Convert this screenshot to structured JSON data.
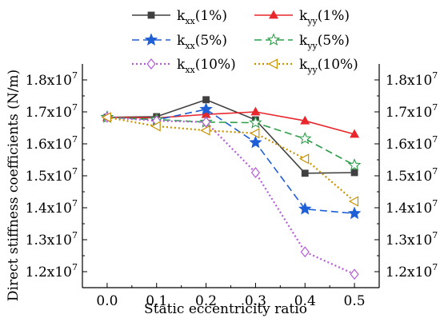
{
  "chart_data": {
    "type": "line",
    "title": "",
    "xlabel": "Static eccentricity ratio",
    "ylabel": "Direct stiffness coefficients (N/m)",
    "x": [
      0.0,
      0.1,
      0.2,
      0.3,
      0.4,
      0.5
    ],
    "x_ticks": [
      "0.0",
      "0.1",
      "0.2",
      "0.3",
      "0.4",
      "0.5"
    ],
    "xlim": [
      -0.05,
      0.55
    ],
    "ylim": [
      11500000,
      18500000
    ],
    "y_ticks": [
      {
        "value": 12000000,
        "mantissa": "1.2",
        "exp": "7"
      },
      {
        "value": 13000000,
        "mantissa": "1.3",
        "exp": "7"
      },
      {
        "value": 14000000,
        "mantissa": "1.4",
        "exp": "7"
      },
      {
        "value": 15000000,
        "mantissa": "1.5",
        "exp": "7"
      },
      {
        "value": 16000000,
        "mantissa": "1.6",
        "exp": "7"
      },
      {
        "value": 17000000,
        "mantissa": "1.7",
        "exp": "7"
      },
      {
        "value": 18000000,
        "mantissa": "1.8",
        "exp": "7"
      }
    ],
    "y_tick_base": "x10",
    "grid": false,
    "legend_position": "top",
    "series": [
      {
        "name_main": "k",
        "name_sub": "xx",
        "name_suffix": "(1%)",
        "color": "#404040",
        "dash": "solid",
        "marker": "square-filled",
        "values": [
          16830000,
          16850000,
          17380000,
          16750000,
          15080000,
          15100000
        ]
      },
      {
        "name_main": "k",
        "name_sub": "yy",
        "name_suffix": "(1%)",
        "color": "#e8262b",
        "dash": "solid",
        "marker": "triangle-filled",
        "values": [
          16830000,
          16810000,
          16920000,
          17000000,
          16720000,
          16300000
        ]
      },
      {
        "name_main": "k",
        "name_sub": "xx",
        "name_suffix": "(5%)",
        "color": "#1f5fd6",
        "dash": "dashed",
        "marker": "star-filled",
        "values": [
          16830000,
          16750000,
          17080000,
          16040000,
          13960000,
          13820000
        ]
      },
      {
        "name_main": "k",
        "name_sub": "yy",
        "name_suffix": "(5%)",
        "color": "#2e9e4a",
        "dash": "dashed",
        "marker": "star-open",
        "values": [
          16830000,
          16760000,
          16680000,
          16660000,
          16160000,
          15330000
        ]
      },
      {
        "name_main": "k",
        "name_sub": "xx",
        "name_suffix": "(10%)",
        "color": "#b45cd6",
        "dash": "dotted",
        "marker": "diamond-open",
        "values": [
          16830000,
          16720000,
          16680000,
          15100000,
          12620000,
          11920000
        ]
      },
      {
        "name_main": "k",
        "name_sub": "yy",
        "name_suffix": "(10%)",
        "color": "#c89200",
        "dash": "dotted",
        "marker": "triangle-left-open",
        "values": [
          16830000,
          16550000,
          16420000,
          16330000,
          15530000,
          14200000
        ]
      }
    ]
  }
}
